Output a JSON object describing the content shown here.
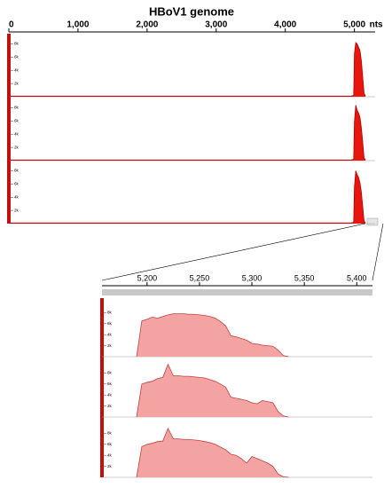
{
  "chart_data": [
    {
      "type": "area",
      "title": "HBoV1 genome",
      "x_unit": "nts",
      "color": "#e8160c",
      "xlim": [
        0,
        5300
      ],
      "xticks": [
        0,
        {
          "value": 1000,
          "label": "1,000"
        },
        {
          "value": 2000,
          "label": "2,000"
        },
        {
          "value": 3000,
          "label": "3,000"
        },
        {
          "value": 4000,
          "label": "4,000"
        },
        {
          "value": 5000,
          "label": "5,000"
        }
      ],
      "ylim": [
        0,
        9
      ],
      "yticks": [
        {
          "value": 2,
          "label": "2k"
        },
        {
          "value": 4,
          "label": "4k"
        },
        {
          "value": 6,
          "label": "6k"
        },
        {
          "value": 8,
          "label": "8k"
        }
      ],
      "x": [
        0,
        500,
        1000,
        1500,
        2000,
        2500,
        3000,
        3500,
        4000,
        4500,
        4950,
        4990,
        5000,
        5020,
        5040,
        5060,
        5080,
        5100,
        5120,
        5140,
        5160
      ],
      "series": [
        {
          "values": [
            0.1,
            0.1,
            0.1,
            0.1,
            0.1,
            0.1,
            0.1,
            0.1,
            0.1,
            0.1,
            0.1,
            0.2,
            6.5,
            8.2,
            8.0,
            7.5,
            7.0,
            5.5,
            3.0,
            0.5,
            0.1
          ]
        },
        {
          "values": [
            0.1,
            0.1,
            0.1,
            0.1,
            0.1,
            0.1,
            0.1,
            0.1,
            0.1,
            0.1,
            0.1,
            0.2,
            5.8,
            8.4,
            7.6,
            7.2,
            6.6,
            5.0,
            2.8,
            0.4,
            0.1
          ]
        },
        {
          "values": [
            0.1,
            0.1,
            0.1,
            0.1,
            0.1,
            0.1,
            0.1,
            0.1,
            0.1,
            0.1,
            0.1,
            0.2,
            5.5,
            8.0,
            7.4,
            7.0,
            6.2,
            4.8,
            2.6,
            0.4,
            0.1
          ]
        }
      ]
    },
    {
      "type": "area",
      "color": "#f4a3a3",
      "xlim": [
        5157,
        5415
      ],
      "xticks": [
        {
          "value": 5200,
          "label": "5,200"
        },
        {
          "value": 5250,
          "label": "5,250"
        },
        {
          "value": 5300,
          "label": "5,300"
        },
        {
          "value": 5350,
          "label": "5,350"
        },
        {
          "value": 5400,
          "label": "5,400"
        }
      ],
      "ylim": [
        0,
        10
      ],
      "yticks": [
        {
          "value": 2,
          "label": "2k"
        },
        {
          "value": 4,
          "label": "4k"
        },
        {
          "value": 6,
          "label": "6k"
        },
        {
          "value": 8,
          "label": "8k"
        }
      ],
      "x": [
        5190,
        5195,
        5200,
        5205,
        5210,
        5215,
        5220,
        5225,
        5230,
        5235,
        5240,
        5245,
        5250,
        5255,
        5260,
        5265,
        5270,
        5275,
        5280,
        5285,
        5290,
        5295,
        5300,
        5305,
        5310,
        5315,
        5320,
        5325,
        5330,
        5335
      ],
      "series": [
        {
          "values": [
            0,
            6.5,
            6.8,
            7.2,
            7.0,
            7.3,
            7.6,
            7.8,
            7.8,
            7.8,
            7.7,
            7.7,
            7.6,
            7.5,
            7.3,
            7.0,
            6.4,
            5.6,
            3.8,
            3.6,
            3.3,
            3.0,
            2.4,
            2.3,
            2.1,
            2.0,
            1.9,
            1.2,
            0.2,
            0
          ]
        },
        {
          "values": [
            0,
            6.0,
            6.3,
            6.5,
            7.0,
            7.2,
            9.6,
            7.5,
            7.5,
            7.4,
            7.4,
            7.3,
            7.2,
            7.1,
            6.8,
            6.5,
            6.0,
            5.4,
            3.6,
            3.4,
            3.2,
            3.0,
            2.6,
            2.4,
            3.0,
            2.8,
            2.6,
            1.0,
            0.2,
            0
          ]
        },
        {
          "values": [
            0,
            5.6,
            6.0,
            6.2,
            6.5,
            6.6,
            8.9,
            7.0,
            7.0,
            6.9,
            6.9,
            6.8,
            6.7,
            6.5,
            6.3,
            6.0,
            5.5,
            5.0,
            4.2,
            4.0,
            3.4,
            2.6,
            3.8,
            3.4,
            3.0,
            2.6,
            2.0,
            0.6,
            0.1,
            0
          ]
        }
      ]
    }
  ]
}
